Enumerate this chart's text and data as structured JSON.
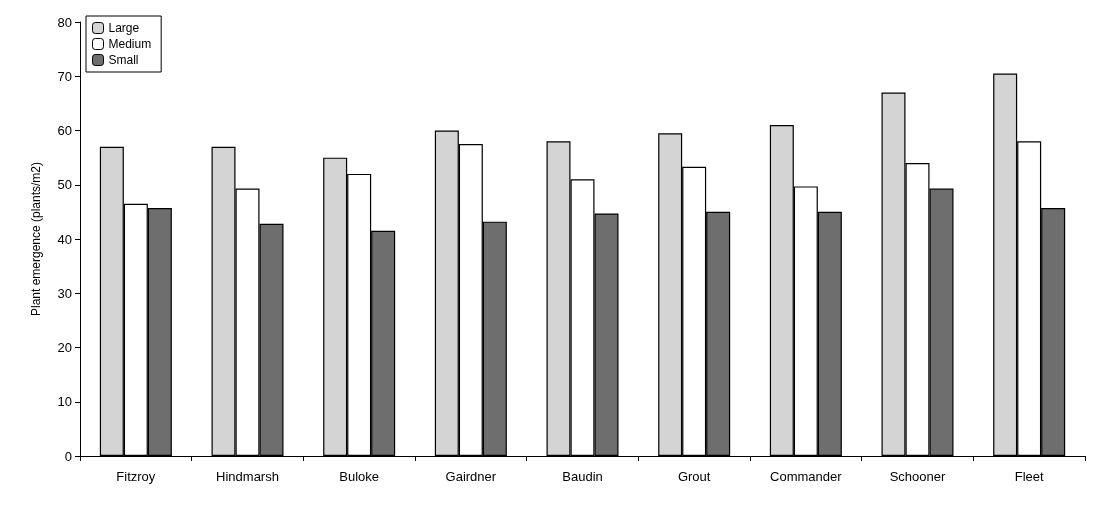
{
  "chart_data": {
    "type": "bar",
    "ylabel": "Plant emergence (plants/m2)",
    "categories": [
      "Fitzroy",
      "Hindmarsh",
      "Buloke",
      "Gairdner",
      "Baudin",
      "Grout",
      "Commander",
      "Schooner",
      "Fleet"
    ],
    "series": [
      {
        "name": "Large",
        "color": "#d4d4d4",
        "values": [
          57,
          57,
          55,
          60,
          58,
          59.5,
          61,
          67,
          70.5
        ]
      },
      {
        "name": "Medium",
        "color": "#ffffff",
        "values": [
          46.5,
          49.3,
          52,
          57.5,
          51,
          53.3,
          49.7,
          54,
          58
        ]
      },
      {
        "name": "Small",
        "color": "#6e6e6e",
        "values": [
          45.7,
          42.8,
          41.5,
          43.2,
          44.7,
          45,
          45,
          49.3,
          45.7
        ]
      }
    ],
    "ylim": [
      0,
      80
    ],
    "yticks": [
      0,
      10,
      20,
      30,
      40,
      50,
      60,
      70,
      80
    ],
    "grid": false,
    "legend": "top left"
  }
}
